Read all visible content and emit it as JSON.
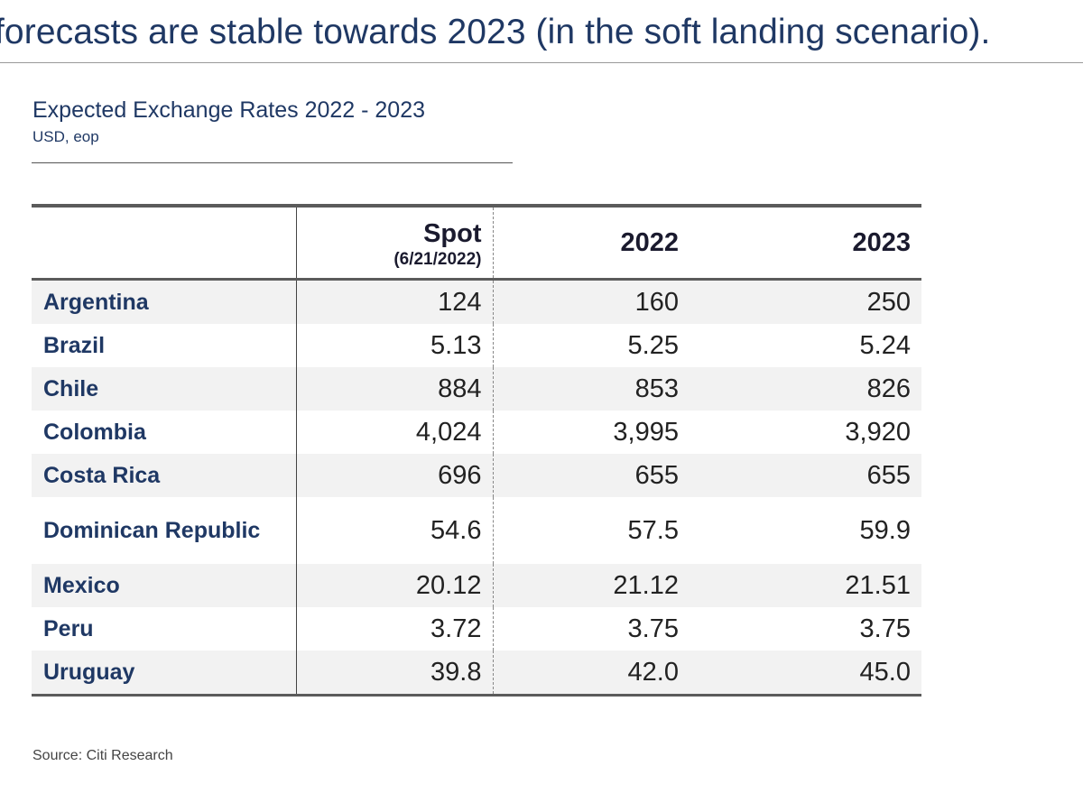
{
  "headline": "forecasts are stable towards 2023 (in the soft landing scenario).",
  "chart_data": {
    "type": "table",
    "title": "Expected Exchange Rates 2022 - 2023",
    "subtitle": "USD, eop",
    "columns": {
      "country": "",
      "spot": "Spot",
      "spot_date": "(6/21/2022)",
      "y2022": "2022",
      "y2023": "2023"
    },
    "rows": [
      {
        "country": "Argentina",
        "spot": "124",
        "y2022": "160",
        "y2023": "250"
      },
      {
        "country": "Brazil",
        "spot": "5.13",
        "y2022": "5.25",
        "y2023": "5.24"
      },
      {
        "country": "Chile",
        "spot": "884",
        "y2022": "853",
        "y2023": "826"
      },
      {
        "country": "Colombia",
        "spot": "4,024",
        "y2022": "3,995",
        "y2023": "3,920"
      },
      {
        "country": "Costa Rica",
        "spot": "696",
        "y2022": "655",
        "y2023": "655"
      },
      {
        "country": "Dominican Republic",
        "spot": "54.6",
        "y2022": "57.5",
        "y2023": "59.9"
      },
      {
        "country": "Mexico",
        "spot": "20.12",
        "y2022": "21.12",
        "y2023": "21.51"
      },
      {
        "country": "Peru",
        "spot": "3.72",
        "y2022": "3.75",
        "y2023": "3.75"
      },
      {
        "country": "Uruguay",
        "spot": "39.8",
        "y2022": "42.0",
        "y2023": "45.0"
      }
    ],
    "source": "Source: Citi Research"
  }
}
